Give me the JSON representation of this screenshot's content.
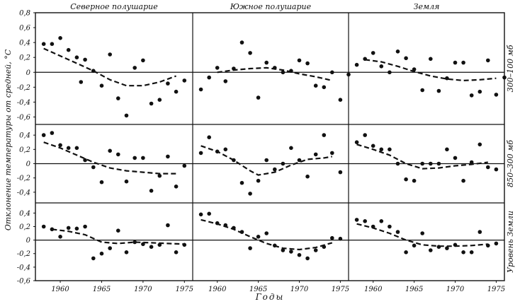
{
  "chart_data": {
    "type": "scatter",
    "y_title": "Отклонение температуры от средней, °С",
    "x_title": "Годы",
    "units": "°С",
    "columns": [
      "Северное полушарие",
      "Южное полушарие",
      "Земля"
    ],
    "rows": [
      {
        "label": "300–100 мб",
        "ylim": [
          -0.7,
          0.8
        ],
        "yticks": [
          0.8,
          0.6,
          0.4,
          0.2,
          0,
          -0.2,
          -0.4,
          -0.6
        ],
        "ytick_labels": [
          "0,8",
          "0,6",
          "0,4",
          "0,2",
          "0",
          "-0,2",
          "-0,4",
          "-0,6"
        ]
      },
      {
        "label": "850–300 мб",
        "ylim": [
          -0.55,
          0.55
        ],
        "yticks": [
          0.4,
          0.2,
          0,
          -0.2,
          -0.4
        ],
        "ytick_labels": [
          "0,4",
          "0,2",
          "0",
          "-0,2",
          "-0,4"
        ]
      },
      {
        "label": "Уровень Земли",
        "ylim": [
          -0.6,
          0.55
        ],
        "yticks": [
          0.4,
          0.2,
          0,
          -0.2,
          -0.4,
          -0.6
        ],
        "ytick_labels": [
          "0,4",
          "0,2",
          "0",
          "-0,2",
          "-0,4",
          "-0,6"
        ]
      }
    ],
    "xlim": [
      1957,
      1976
    ],
    "xticks": [
      1960,
      1965,
      1970,
      1975
    ],
    "xtick_labels": [
      "1960",
      "1965",
      "1970",
      "1975"
    ],
    "panels": [
      {
        "row": 0,
        "col": 0,
        "points": [
          [
            1958,
            0.38
          ],
          [
            1959,
            0.38
          ],
          [
            1960,
            0.46
          ],
          [
            1961,
            0.3
          ],
          [
            1962,
            0.2
          ],
          [
            1962.5,
            -0.13
          ],
          [
            1963,
            0.17
          ],
          [
            1964,
            0.02
          ],
          [
            1965,
            -0.18
          ],
          [
            1966,
            0.24
          ],
          [
            1967,
            -0.35
          ],
          [
            1968,
            -0.58
          ],
          [
            1969,
            0.06
          ],
          [
            1970,
            0.16
          ],
          [
            1971,
            -0.42
          ],
          [
            1972,
            -0.37
          ],
          [
            1973,
            -0.15
          ],
          [
            1974,
            -0.26
          ],
          [
            1975,
            -0.11
          ]
        ],
        "trend": [
          [
            1958,
            0.32
          ],
          [
            1960,
            0.22
          ],
          [
            1962,
            0.12
          ],
          [
            1964,
            0.02
          ],
          [
            1966,
            -0.1
          ],
          [
            1968,
            -0.18
          ],
          [
            1970,
            -0.18
          ],
          [
            1972,
            -0.13
          ],
          [
            1974,
            -0.05
          ]
        ]
      },
      {
        "row": 0,
        "col": 1,
        "points": [
          [
            1958,
            -0.23
          ],
          [
            1959,
            -0.07
          ],
          [
            1960,
            0.06
          ],
          [
            1961,
            -0.12
          ],
          [
            1962,
            0.05
          ],
          [
            1963,
            0.4
          ],
          [
            1964,
            0.26
          ],
          [
            1965,
            -0.34
          ],
          [
            1966,
            0.13
          ],
          [
            1967,
            0.06
          ],
          [
            1968,
            0.0
          ],
          [
            1969,
            0.02
          ],
          [
            1970,
            0.16
          ],
          [
            1971,
            0.12
          ],
          [
            1972,
            -0.18
          ],
          [
            1973,
            -0.2
          ],
          [
            1974,
            0.0
          ],
          [
            1975,
            -0.37
          ],
          [
            1976,
            -0.03
          ]
        ],
        "trend": [
          [
            1960,
            0.0
          ],
          [
            1962,
            0.03
          ],
          [
            1964,
            0.05
          ],
          [
            1966,
            0.06
          ],
          [
            1968,
            0.03
          ],
          [
            1970,
            -0.02
          ],
          [
            1972,
            -0.06
          ],
          [
            1974,
            -0.11
          ]
        ]
      },
      {
        "row": 0,
        "col": 2,
        "points": [
          [
            1958,
            0.1
          ],
          [
            1959,
            0.18
          ],
          [
            1960,
            0.26
          ],
          [
            1961,
            0.08
          ],
          [
            1962,
            0.0
          ],
          [
            1963,
            0.28
          ],
          [
            1964,
            0.19
          ],
          [
            1965,
            0.04
          ],
          [
            1966,
            -0.24
          ],
          [
            1967,
            0.18
          ],
          [
            1968,
            -0.25
          ],
          [
            1969,
            -0.08
          ],
          [
            1970,
            0.13
          ],
          [
            1971,
            0.13
          ],
          [
            1972,
            -0.31
          ],
          [
            1973,
            -0.26
          ],
          [
            1974,
            0.16
          ],
          [
            1975,
            -0.3
          ],
          [
            1976,
            -0.07
          ]
        ],
        "trend": [
          [
            1959,
            0.17
          ],
          [
            1961,
            0.14
          ],
          [
            1963,
            0.08
          ],
          [
            1965,
            0.01
          ],
          [
            1967,
            -0.05
          ],
          [
            1969,
            -0.09
          ],
          [
            1971,
            -0.11
          ],
          [
            1973,
            -0.1
          ],
          [
            1975,
            -0.08
          ]
        ]
      },
      {
        "row": 1,
        "col": 0,
        "points": [
          [
            1958,
            0.4
          ],
          [
            1959,
            0.43
          ],
          [
            1960,
            0.26
          ],
          [
            1961,
            0.22
          ],
          [
            1962,
            0.22
          ],
          [
            1963,
            0.05
          ],
          [
            1964,
            -0.05
          ],
          [
            1965,
            -0.26
          ],
          [
            1966,
            0.18
          ],
          [
            1967,
            0.13
          ],
          [
            1968,
            -0.25
          ],
          [
            1969,
            0.08
          ],
          [
            1970,
            0.08
          ],
          [
            1971,
            -0.38
          ],
          [
            1972,
            -0.17
          ],
          [
            1973,
            0.1
          ],
          [
            1974,
            -0.32
          ],
          [
            1975,
            -0.03
          ]
        ],
        "trend": [
          [
            1958,
            0.3
          ],
          [
            1960,
            0.22
          ],
          [
            1962,
            0.12
          ],
          [
            1964,
            0.02
          ],
          [
            1966,
            -0.06
          ],
          [
            1968,
            -0.1
          ],
          [
            1970,
            -0.12
          ],
          [
            1972,
            -0.14
          ],
          [
            1974,
            -0.14
          ]
        ]
      },
      {
        "row": 1,
        "col": 1,
        "points": [
          [
            1958,
            0.15
          ],
          [
            1959,
            0.37
          ],
          [
            1960,
            0.17
          ],
          [
            1961,
            0.2
          ],
          [
            1962,
            0.05
          ],
          [
            1963,
            -0.27
          ],
          [
            1964,
            -0.42
          ],
          [
            1965,
            -0.24
          ],
          [
            1966,
            0.05
          ],
          [
            1967,
            -0.08
          ],
          [
            1968,
            0.0
          ],
          [
            1969,
            0.22
          ],
          [
            1970,
            0.05
          ],
          [
            1971,
            -0.18
          ],
          [
            1972,
            0.13
          ],
          [
            1973,
            0.4
          ],
          [
            1974,
            0.15
          ],
          [
            1975,
            -0.12
          ]
        ],
        "trend": [
          [
            1958,
            0.25
          ],
          [
            1960,
            0.17
          ],
          [
            1962,
            0.05
          ],
          [
            1964,
            -0.1
          ],
          [
            1965,
            -0.16
          ],
          [
            1967,
            -0.12
          ],
          [
            1969,
            -0.02
          ],
          [
            1971,
            0.06
          ],
          [
            1973,
            0.08
          ],
          [
            1974,
            0.1
          ]
        ]
      },
      {
        "row": 1,
        "col": 2,
        "points": [
          [
            1958,
            0.3
          ],
          [
            1959,
            0.4
          ],
          [
            1960,
            0.25
          ],
          [
            1961,
            0.2
          ],
          [
            1962,
            0.2
          ],
          [
            1963,
            0.0
          ],
          [
            1964,
            -0.22
          ],
          [
            1965,
            -0.24
          ],
          [
            1966,
            0.0
          ],
          [
            1967,
            0.0
          ],
          [
            1968,
            0.0
          ],
          [
            1969,
            0.2
          ],
          [
            1970,
            0.08
          ],
          [
            1971,
            -0.24
          ],
          [
            1972,
            0.02
          ],
          [
            1973,
            0.27
          ],
          [
            1974,
            -0.05
          ],
          [
            1975,
            -0.08
          ]
        ],
        "trend": [
          [
            1958,
            0.27
          ],
          [
            1960,
            0.2
          ],
          [
            1962,
            0.12
          ],
          [
            1964,
            0.0
          ],
          [
            1966,
            -0.07
          ],
          [
            1968,
            -0.06
          ],
          [
            1970,
            -0.03
          ],
          [
            1972,
            -0.01
          ],
          [
            1974,
            0.02
          ]
        ]
      },
      {
        "row": 2,
        "col": 0,
        "points": [
          [
            1958,
            0.2
          ],
          [
            1959,
            0.16
          ],
          [
            1960,
            0.05
          ],
          [
            1961,
            0.18
          ],
          [
            1962,
            0.17
          ],
          [
            1963,
            0.2
          ],
          [
            1964,
            -0.27
          ],
          [
            1965,
            -0.2
          ],
          [
            1966,
            -0.12
          ],
          [
            1967,
            0.14
          ],
          [
            1968,
            -0.18
          ],
          [
            1969,
            -0.03
          ],
          [
            1970,
            -0.06
          ],
          [
            1971,
            -0.1
          ],
          [
            1972,
            -0.07
          ],
          [
            1973,
            0.22
          ],
          [
            1974,
            -0.18
          ],
          [
            1975,
            -0.07
          ]
        ],
        "trend": [
          [
            1959,
            0.16
          ],
          [
            1961,
            0.13
          ],
          [
            1963,
            0.08
          ],
          [
            1965,
            -0.03
          ],
          [
            1967,
            -0.05
          ],
          [
            1969,
            -0.03
          ],
          [
            1971,
            -0.04
          ],
          [
            1973,
            -0.05
          ],
          [
            1975,
            -0.06
          ]
        ]
      },
      {
        "row": 2,
        "col": 1,
        "points": [
          [
            1958,
            0.38
          ],
          [
            1959,
            0.39
          ],
          [
            1960,
            0.25
          ],
          [
            1961,
            0.22
          ],
          [
            1962,
            0.18
          ],
          [
            1963,
            0.12
          ],
          [
            1964,
            -0.12
          ],
          [
            1965,
            0.05
          ],
          [
            1966,
            0.1
          ],
          [
            1967,
            -0.08
          ],
          [
            1968,
            -0.15
          ],
          [
            1969,
            -0.17
          ],
          [
            1970,
            -0.22
          ],
          [
            1971,
            -0.27
          ],
          [
            1972,
            -0.15
          ],
          [
            1973,
            -0.1
          ],
          [
            1974,
            0.03
          ],
          [
            1975,
            0.02
          ]
        ],
        "trend": [
          [
            1958,
            0.3
          ],
          [
            1960,
            0.24
          ],
          [
            1962,
            0.16
          ],
          [
            1964,
            0.05
          ],
          [
            1966,
            -0.05
          ],
          [
            1968,
            -0.12
          ],
          [
            1970,
            -0.14
          ],
          [
            1972,
            -0.11
          ],
          [
            1974,
            -0.04
          ]
        ]
      },
      {
        "row": 2,
        "col": 2,
        "points": [
          [
            1958,
            0.3
          ],
          [
            1959,
            0.28
          ],
          [
            1960,
            0.2
          ],
          [
            1961,
            0.28
          ],
          [
            1962,
            0.2
          ],
          [
            1963,
            0.12
          ],
          [
            1964,
            -0.18
          ],
          [
            1965,
            -0.08
          ],
          [
            1966,
            0.1
          ],
          [
            1967,
            -0.15
          ],
          [
            1968,
            -0.1
          ],
          [
            1969,
            -0.12
          ],
          [
            1970,
            -0.07
          ],
          [
            1971,
            -0.18
          ],
          [
            1972,
            -0.18
          ],
          [
            1973,
            0.12
          ],
          [
            1974,
            -0.08
          ],
          [
            1975,
            -0.05
          ]
        ],
        "trend": [
          [
            1958,
            0.24
          ],
          [
            1960,
            0.18
          ],
          [
            1962,
            0.1
          ],
          [
            1964,
            0.0
          ],
          [
            1966,
            -0.07
          ],
          [
            1968,
            -0.09
          ],
          [
            1970,
            -0.09
          ],
          [
            1972,
            -0.08
          ],
          [
            1974,
            -0.06
          ]
        ]
      }
    ]
  }
}
